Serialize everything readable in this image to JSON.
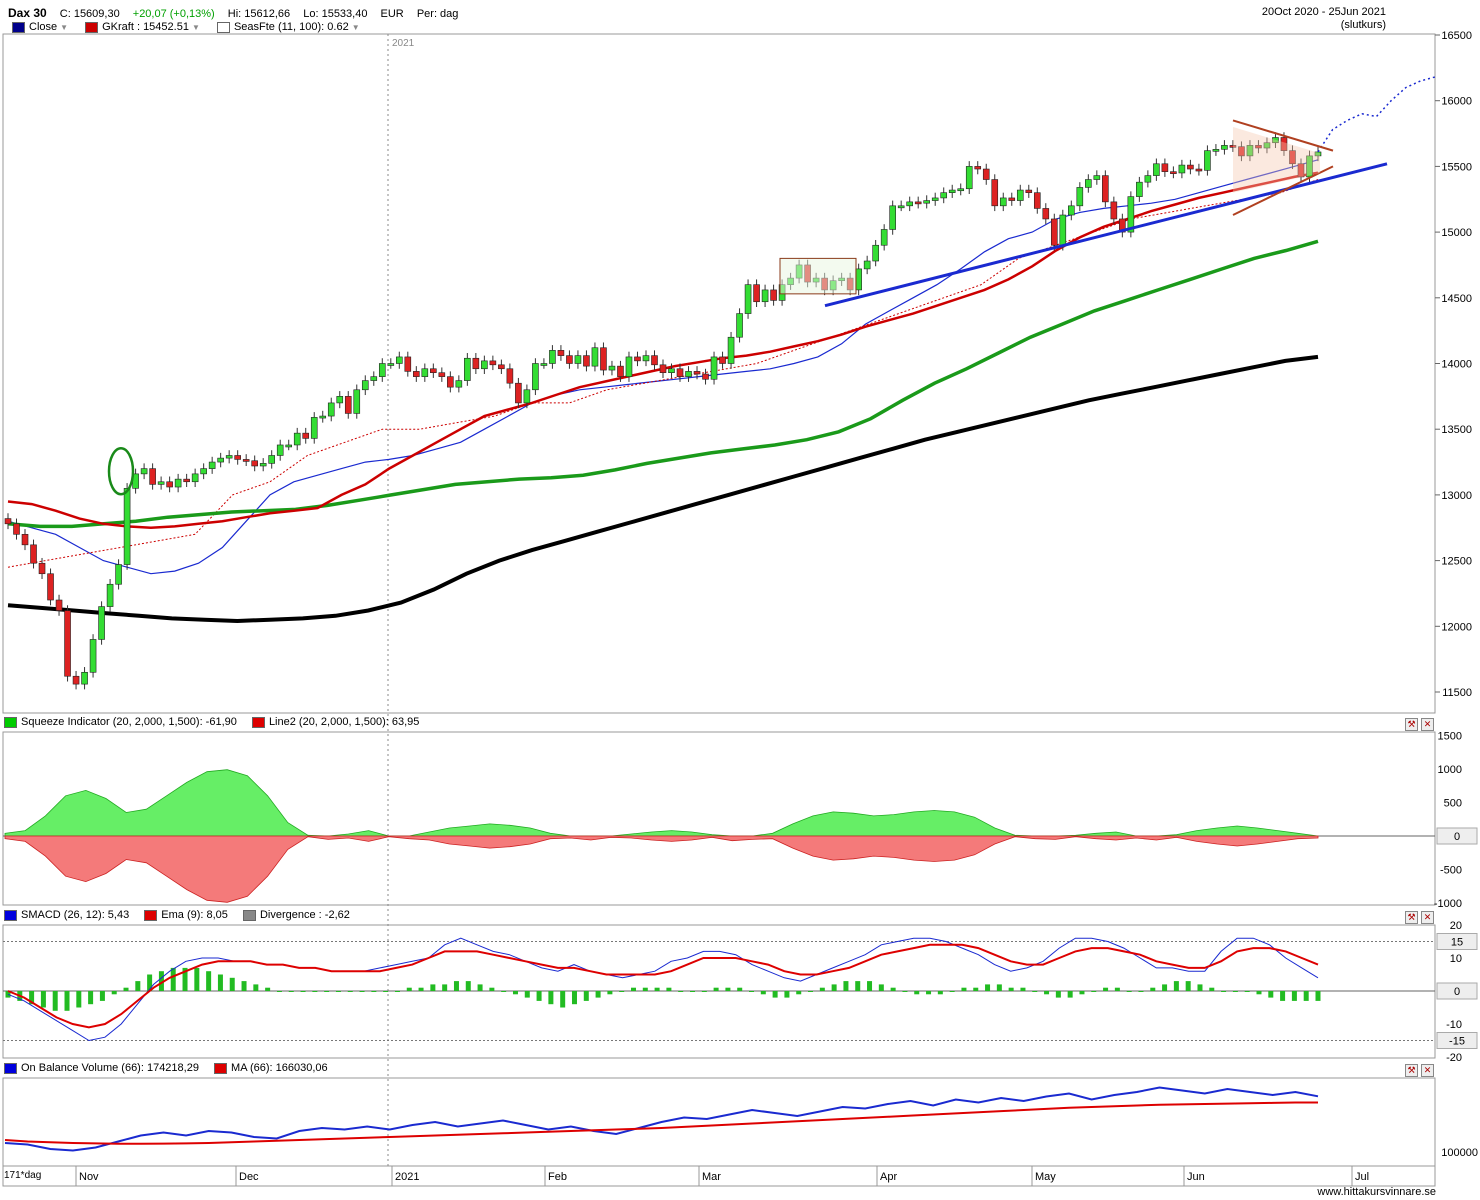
{
  "header": {
    "title": "Dax 30",
    "close": "C: 15609,30",
    "change": "+20,07 (+0,13%)",
    "high": "Hi: 15612,66",
    "low": "Lo: 15533,40",
    "currency": "EUR",
    "period": "Per: dag",
    "date_range": "20Oct 2020 - 25Jun 2021",
    "price_type": "(slutkurs)",
    "legend": [
      {
        "label": "Close",
        "color": "#00008b"
      },
      {
        "label": "GKraft : 15452.51",
        "color": "#cc0000"
      },
      {
        "label": "SeasFte (11, 100): 0.62",
        "color": "#ffffff"
      }
    ]
  },
  "x_axis": {
    "labels": [
      "Nov",
      "Dec",
      "2021",
      "Feb",
      "Mar",
      "Apr",
      "May",
      "Jun",
      "Jul"
    ],
    "year_marker": "2021",
    "bottom_left": "171*dag"
  },
  "panels": {
    "squeeze": {
      "legend": [
        {
          "label": "Squeeze Indicator (20, 2,000, 1,500): -61,90",
          "color": "#00cc00"
        },
        {
          "label": "Line2 (20, 2,000, 1,500): 63,95",
          "color": "#dd0000"
        }
      ],
      "ticks": [
        "1500",
        "1000",
        "500",
        "-500",
        "-1000"
      ],
      "zero_label": "0"
    },
    "smacd": {
      "legend": [
        {
          "label": "SMACD (26, 12): 5,43",
          "color": "#0000dd"
        },
        {
          "label": "Ema (9): 8,05",
          "color": "#dd0000"
        },
        {
          "label": "Divergence : -2,62",
          "color": "#888888"
        }
      ],
      "ticks": [
        "20",
        "10",
        "-10",
        "-20"
      ],
      "box_labels": [
        "15",
        "0",
        "-15"
      ]
    },
    "obv": {
      "legend": [
        {
          "label": "On Balance Volume (66): 174218,29",
          "color": "#0000dd"
        },
        {
          "label": "MA (66): 166030,06",
          "color": "#dd0000"
        }
      ],
      "ticks": [
        "100000"
      ]
    }
  },
  "chart_data": {
    "type": "line",
    "title": "Dax 30",
    "ylim": [
      11300,
      16600
    ],
    "y_ticks": [
      11500,
      12000,
      12500,
      13000,
      13500,
      14000,
      14500,
      15000,
      15500,
      16000,
      16500
    ],
    "y_tick_labels": [
      "11500",
      "12000",
      "12500",
      "13000",
      "13500",
      "14000",
      "14500",
      "15000",
      "15500",
      "16000",
      "16500"
    ],
    "close": [
      12780,
      12700,
      12620,
      12480,
      12400,
      12200,
      12120,
      11620,
      11560,
      11650,
      11900,
      12150,
      12320,
      12470,
      13050,
      13160,
      13200,
      13080,
      13100,
      13060,
      13120,
      13100,
      13160,
      13200,
      13250,
      13280,
      13300,
      13270,
      13260,
      13220,
      13240,
      13300,
      13380,
      13380,
      13470,
      13430,
      13590,
      13600,
      13700,
      13750,
      13620,
      13800,
      13870,
      13900,
      14000,
      14000,
      14050,
      13940,
      13900,
      13960,
      13930,
      13900,
      13820,
      13870,
      14040,
      13960,
      14020,
      13990,
      13960,
      13850,
      13700,
      13800,
      14000,
      14000,
      14100,
      14060,
      14000,
      14060,
      13980,
      14120,
      13950,
      13980,
      13900,
      14050,
      14020,
      14060,
      13990,
      13930,
      13960,
      13900,
      13940,
      13920,
      13880,
      14050,
      14000,
      14200,
      14380,
      14600,
      14470,
      14560,
      14480,
      14600,
      14650,
      14750,
      14620,
      14650,
      14560,
      14630,
      14650,
      14560,
      14720,
      14780,
      14900,
      15020,
      15200,
      15200,
      15230,
      15220,
      15240,
      15260,
      15300,
      15320,
      15330,
      15500,
      15480,
      15400,
      15200,
      15260,
      15240,
      15320,
      15300,
      15180,
      15100,
      14900,
      15130,
      15200,
      15340,
      15400,
      15430,
      15230,
      15100,
      15000,
      15270,
      15380,
      15430,
      15520,
      15460,
      15450,
      15510,
      15480,
      15470,
      15620,
      15630,
      15660,
      15650,
      15580,
      15660,
      15640,
      15680,
      15720,
      15620,
      15520,
      15420,
      15580,
      15610
    ],
    "projection": [
      15610,
      15780,
      15850,
      15900,
      15880,
      16000,
      16100,
      16150,
      16180
    ],
    "series": [
      {
        "name": "GKraft",
        "color": "#cc0000",
        "values": [
          12950,
          12930,
          12880,
          12820,
          12780,
          12760,
          12750,
          12760,
          12780,
          12800,
          12830,
          12860,
          12880,
          12900,
          13000,
          13080,
          13200,
          13300,
          13400,
          13500,
          13600,
          13650,
          13700,
          13760,
          13820,
          13860,
          13900,
          13940,
          13980,
          14010,
          14040,
          14060,
          14090,
          14130,
          14170,
          14220,
          14280,
          14330,
          14380,
          14440,
          14500,
          14560,
          14640,
          14740,
          14860,
          14960,
          15040,
          15100,
          15160,
          15210,
          15260,
          15300,
          15340,
          15380,
          15420,
          15452
        ]
      },
      {
        "name": "GKraft-trailing",
        "color": "#cc0000",
        "values": [
          12450,
          12500,
          12550,
          12600,
          12650,
          12700,
          13000,
          13100,
          13300,
          13400,
          13500,
          13500,
          13550,
          13600,
          13700,
          13700,
          13800,
          13850,
          13900,
          13950,
          14000,
          14100,
          14200,
          14300,
          14400,
          14500,
          14600,
          14800,
          14900,
          15000,
          15100,
          15150,
          15200,
          15250,
          15300,
          15400
        ]
      },
      {
        "name": "Green MA",
        "color": "#1a9a1a",
        "values": [
          12780,
          12760,
          12760,
          12780,
          12800,
          12830,
          12850,
          12870,
          12880,
          12890,
          12920,
          12960,
          13000,
          13040,
          13080,
          13100,
          13120,
          13130,
          13150,
          13190,
          13240,
          13280,
          13320,
          13350,
          13380,
          13420,
          13480,
          13580,
          13720,
          13850,
          13960,
          14080,
          14200,
          14300,
          14400,
          14480,
          14560,
          14640,
          14720,
          14800,
          14860,
          14930
        ]
      },
      {
        "name": "Black MA",
        "color": "#000000",
        "values": [
          12160,
          12140,
          12120,
          12100,
          12080,
          12060,
          12050,
          12040,
          12050,
          12060,
          12080,
          12120,
          12180,
          12280,
          12400,
          12500,
          12580,
          12650,
          12720,
          12790,
          12860,
          12930,
          13000,
          13070,
          13140,
          13210,
          13280,
          13350,
          13420,
          13480,
          13540,
          13600,
          13660,
          13720,
          13770,
          13820,
          13870,
          13920,
          13970,
          14020,
          14050
        ]
      },
      {
        "name": "Blue MA",
        "color": "#1a2ad0",
        "values": [
          12800,
          12750,
          12700,
          12600,
          12500,
          12450,
          12400,
          12420,
          12480,
          12600,
          12800,
          13000,
          13100,
          13150,
          13200,
          13250,
          13270,
          13300,
          13350,
          13400,
          13500,
          13600,
          13700,
          13760,
          13800,
          13820,
          13840,
          13860,
          13880,
          13900,
          13920,
          13940,
          13960,
          14000,
          14050,
          14150,
          14300,
          14400,
          14500,
          14600,
          14720,
          14850,
          14950,
          15000,
          15100,
          15150,
          15180,
          15200,
          15220,
          15250,
          15300,
          15350,
          15400,
          15450,
          15500,
          15550
        ]
      }
    ],
    "trendline": {
      "from": [
        14440,
        14440
      ],
      "to": [
        15520,
        15520
      ]
    },
    "xlabel": "",
    "ylabel": ""
  }
}
